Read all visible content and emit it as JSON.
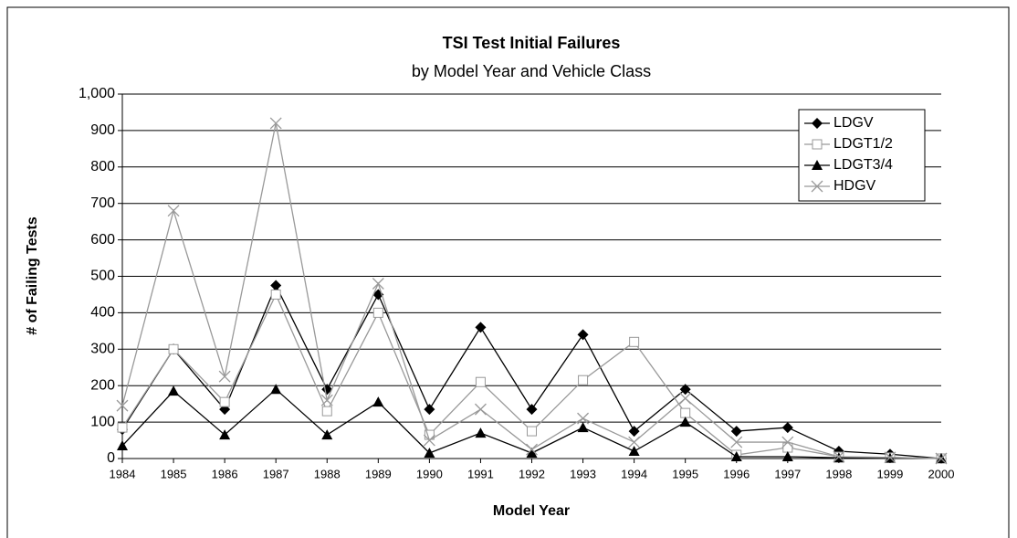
{
  "chart_data": {
    "type": "line",
    "title": "TSI Test Initial Failures",
    "subtitle": "by Model Year and Vehicle Class",
    "x_label": "Model Year",
    "y_label": "# of Failing Tests",
    "categories": [
      "1984",
      "1985",
      "1986",
      "1987",
      "1988",
      "1989",
      "1990",
      "1991",
      "1992",
      "1993",
      "1994",
      "1995",
      "1996",
      "1997",
      "1998",
      "1999",
      "2000"
    ],
    "ylim": [
      0,
      1000
    ],
    "yticks": [
      0,
      100,
      200,
      300,
      400,
      500,
      600,
      700,
      800,
      900,
      {
        "value": 1000,
        "label": "1,000"
      }
    ],
    "grid": true,
    "legend": "upper right",
    "series": [
      {
        "name": "LDGV",
        "color": "#000000",
        "marker": "diamond",
        "values": [
          80,
          300,
          135,
          475,
          190,
          450,
          135,
          360,
          135,
          340,
          75,
          190,
          75,
          85,
          20,
          12,
          0
        ]
      },
      {
        "name": "LDGT1/2",
        "color": "#999999",
        "marker": "square",
        "values": [
          85,
          300,
          155,
          450,
          130,
          400,
          65,
          210,
          75,
          215,
          320,
          125,
          10,
          30,
          5,
          3,
          0
        ]
      },
      {
        "name": "LDGT3/4",
        "color": "#000000",
        "marker": "triangle",
        "values": [
          35,
          185,
          65,
          190,
          65,
          155,
          15,
          70,
          15,
          85,
          20,
          100,
          5,
          5,
          2,
          1,
          0
        ]
      },
      {
        "name": "HDGV",
        "color": "#999999",
        "marker": "x",
        "values": [
          145,
          680,
          225,
          920,
          160,
          480,
          50,
          135,
          25,
          110,
          45,
          165,
          45,
          45,
          5,
          3,
          0
        ]
      }
    ]
  }
}
